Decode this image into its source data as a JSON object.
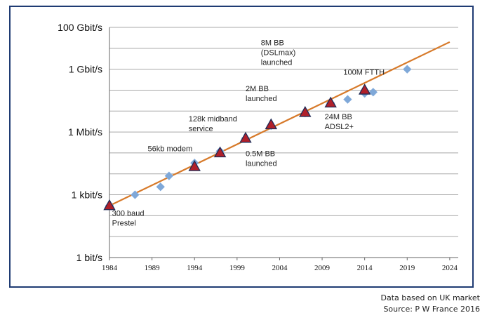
{
  "chart_data": {
    "type": "scatter",
    "y_scale": "log",
    "x_ticks": [
      1984,
      1989,
      1994,
      1999,
      2004,
      2009,
      2014,
      2019,
      2024
    ],
    "y_ticks": [
      {
        "value": 1,
        "label": "1 bit/s"
      },
      {
        "value": 1000,
        "label": "1 kbit/s"
      },
      {
        "value": 1000000,
        "label": "1 Mbit/s"
      },
      {
        "value": 1000000000,
        "label": "1 Gbit/s"
      },
      {
        "value": 100000000000,
        "label": "100 Gbit/s"
      }
    ],
    "xlim": [
      1984,
      2025
    ],
    "ylim": [
      1,
      100000000000
    ],
    "grid": true,
    "series": [
      {
        "marker": "diamond",
        "color": "#7fa8d8",
        "points": [
          {
            "x": 1984,
            "y": 300
          },
          {
            "x": 1987,
            "y": 1000
          },
          {
            "x": 1990,
            "y": 2400
          },
          {
            "x": 1991,
            "y": 8000
          },
          {
            "x": 1994,
            "y": 33000
          },
          {
            "x": 1997,
            "y": 120000
          },
          {
            "x": 2000,
            "y": 500000
          },
          {
            "x": 2003,
            "y": 2000000
          },
          {
            "x": 2007,
            "y": 8000000
          },
          {
            "x": 2010,
            "y": 24000000
          },
          {
            "x": 2012,
            "y": 36000000
          },
          {
            "x": 2014,
            "y": 70000000
          },
          {
            "x": 2015,
            "y": 80000000
          },
          {
            "x": 2019,
            "y": 1000000000
          }
        ]
      },
      {
        "marker": "triangle",
        "color": "#b0202a",
        "points": [
          {
            "x": 1984,
            "y": 300
          },
          {
            "x": 1994,
            "y": 22000
          },
          {
            "x": 1997,
            "y": 100000
          },
          {
            "x": 2000,
            "y": 500000
          },
          {
            "x": 2003,
            "y": 2200000
          },
          {
            "x": 2007,
            "y": 8500000
          },
          {
            "x": 2010,
            "y": 24000000
          },
          {
            "x": 2014,
            "y": 100000000
          }
        ]
      }
    ],
    "trend": {
      "color": "#d77a2a",
      "from": {
        "x": 1984,
        "y": 300
      },
      "to": {
        "x": 2024,
        "y": 20000000000
      }
    },
    "annotations": [
      {
        "lines": [
          "300 baud",
          "Prestel"
        ],
        "x": 1984.3,
        "y": 100
      },
      {
        "lines": [
          "56kb modem"
        ],
        "x": 1988.5,
        "y": 120000
      },
      {
        "lines": [
          "128k midband",
          "service"
        ],
        "x": 1993.3,
        "y": 3200000
      },
      {
        "lines": [
          "0.5M BB",
          "launched"
        ],
        "x": 2000,
        "y": 70000
      },
      {
        "lines": [
          "2M BB",
          "launched"
        ],
        "x": 2000,
        "y": 90000000
      },
      {
        "lines": [
          "8M BB",
          "(DSLmax)",
          "launched"
        ],
        "x": 2001.8,
        "y": 14000000000
      },
      {
        "lines": [
          "100M FTTH"
        ],
        "x": 2011.5,
        "y": 550000000
      },
      {
        "lines": [
          "24M BB",
          "ADSL2+"
        ],
        "x": 2009.3,
        "y": 4000000
      }
    ]
  },
  "footer": {
    "line1": "Data based on UK market",
    "line2": "Source: P W France 2016"
  }
}
